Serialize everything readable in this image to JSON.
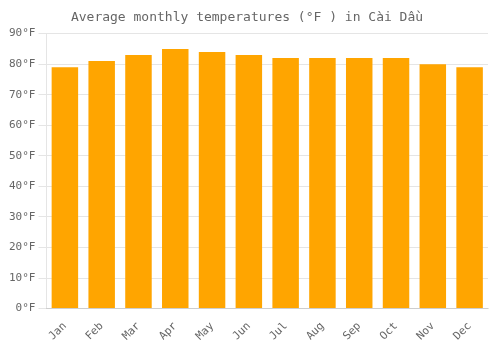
{
  "chart_data": {
    "type": "bar",
    "title": "Average monthly temperatures (°F ) in Cài Dầu",
    "categories": [
      "Jan",
      "Feb",
      "Mar",
      "Apr",
      "May",
      "Jun",
      "Jul",
      "Aug",
      "Sep",
      "Oct",
      "Nov",
      "Dec"
    ],
    "values": [
      79,
      81,
      83,
      85,
      84,
      83,
      82,
      82,
      82,
      82,
      80,
      79
    ],
    "color": "#FFA500",
    "ylim": [
      0,
      90
    ],
    "yticks": [
      {
        "value": 0,
        "label": "0°F"
      },
      {
        "value": 10,
        "label": "10°F"
      },
      {
        "value": 20,
        "label": "20°F"
      },
      {
        "value": 30,
        "label": "30°F"
      },
      {
        "value": 40,
        "label": "40°F"
      },
      {
        "value": 50,
        "label": "50°F"
      },
      {
        "value": 60,
        "label": "60°F"
      },
      {
        "value": 70,
        "label": "70°F"
      },
      {
        "value": 80,
        "label": "80°F"
      },
      {
        "value": 90,
        "label": "90°F"
      }
    ],
    "grid": true
  }
}
